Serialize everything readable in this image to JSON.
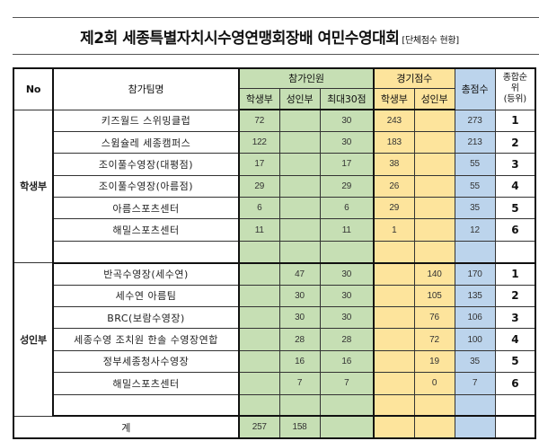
{
  "title": {
    "main": "제2회 세종특별자치시수영연맹회장배 여민수영대회",
    "sub": "[단체점수 현황]"
  },
  "header": {
    "no": "No",
    "team": "참가팀명",
    "participants_group": "참가인원",
    "score_group": "경기점수",
    "total": "총점수",
    "rank": "종합순위(등위)",
    "rank_line1": "종합순",
    "rank_line2": "위",
    "rank_line3": "(등위)",
    "p_student": "학생부",
    "p_adult": "성인부",
    "p_max30": "최대30점",
    "s_student": "학생부",
    "s_adult": "성인부"
  },
  "sections": [
    {
      "division": "학생부",
      "rows": [
        {
          "team": "키즈월드 스위밍클럽",
          "p_student": "72",
          "p_adult": "",
          "p_max30": "30",
          "s_student": "243",
          "s_adult": "",
          "total": "273",
          "rank": "1"
        },
        {
          "team": "스윔슐레 세종캠퍼스",
          "p_student": "122",
          "p_adult": "",
          "p_max30": "30",
          "s_student": "183",
          "s_adult": "",
          "total": "213",
          "rank": "2"
        },
        {
          "team": "조이풀수영장(대평점)",
          "p_student": "17",
          "p_adult": "",
          "p_max30": "17",
          "s_student": "38",
          "s_adult": "",
          "total": "55",
          "rank": "3"
        },
        {
          "team": "조이풀수영장(아름점)",
          "p_student": "29",
          "p_adult": "",
          "p_max30": "29",
          "s_student": "26",
          "s_adult": "",
          "total": "55",
          "rank": "4"
        },
        {
          "team": "아름스포츠센터",
          "p_student": "6",
          "p_adult": "",
          "p_max30": "6",
          "s_student": "29",
          "s_adult": "",
          "total": "35",
          "rank": "5"
        },
        {
          "team": "해밀스포츠센터",
          "p_student": "11",
          "p_adult": "",
          "p_max30": "11",
          "s_student": "1",
          "s_adult": "",
          "total": "12",
          "rank": "6"
        },
        {
          "team": "",
          "p_student": "",
          "p_adult": "",
          "p_max30": "",
          "s_student": "",
          "s_adult": "",
          "total": "",
          "rank": ""
        }
      ]
    },
    {
      "division": "성인부",
      "rows": [
        {
          "team": "반곡수영장(세수연)",
          "p_student": "",
          "p_adult": "47",
          "p_max30": "30",
          "s_student": "",
          "s_adult": "140",
          "total": "170",
          "rank": "1"
        },
        {
          "team": "세수연 아름팀",
          "p_student": "",
          "p_adult": "30",
          "p_max30": "30",
          "s_student": "",
          "s_adult": "105",
          "total": "135",
          "rank": "2"
        },
        {
          "team": "BRC(보람수영장)",
          "p_student": "",
          "p_adult": "30",
          "p_max30": "30",
          "s_student": "",
          "s_adult": "76",
          "total": "106",
          "rank": "3"
        },
        {
          "team": "세종수영 조치원 한솔 수영장연합",
          "p_student": "",
          "p_adult": "28",
          "p_max30": "28",
          "s_student": "",
          "s_adult": "72",
          "total": "100",
          "rank": "4"
        },
        {
          "team": "정부세종청사수영장",
          "p_student": "",
          "p_adult": "16",
          "p_max30": "16",
          "s_student": "",
          "s_adult": "19",
          "total": "35",
          "rank": "5"
        },
        {
          "team": "해밀스포츠센터",
          "p_student": "",
          "p_adult": "7",
          "p_max30": "7",
          "s_student": "",
          "s_adult": "0",
          "total": "7",
          "rank": "6"
        },
        {
          "team": "",
          "p_student": "",
          "p_adult": "",
          "p_max30": "",
          "s_student": "",
          "s_adult": "",
          "total": "",
          "rank": ""
        }
      ]
    }
  ],
  "totals": {
    "label": "계",
    "p_student": "257",
    "p_adult": "158",
    "p_max30": "",
    "s_student": "",
    "s_adult": "",
    "total": "",
    "rank": ""
  },
  "colors": {
    "participants_green": "#c6dfb4",
    "score_yellow": "#fde49c",
    "total_blue": "#bcd4ec"
  }
}
